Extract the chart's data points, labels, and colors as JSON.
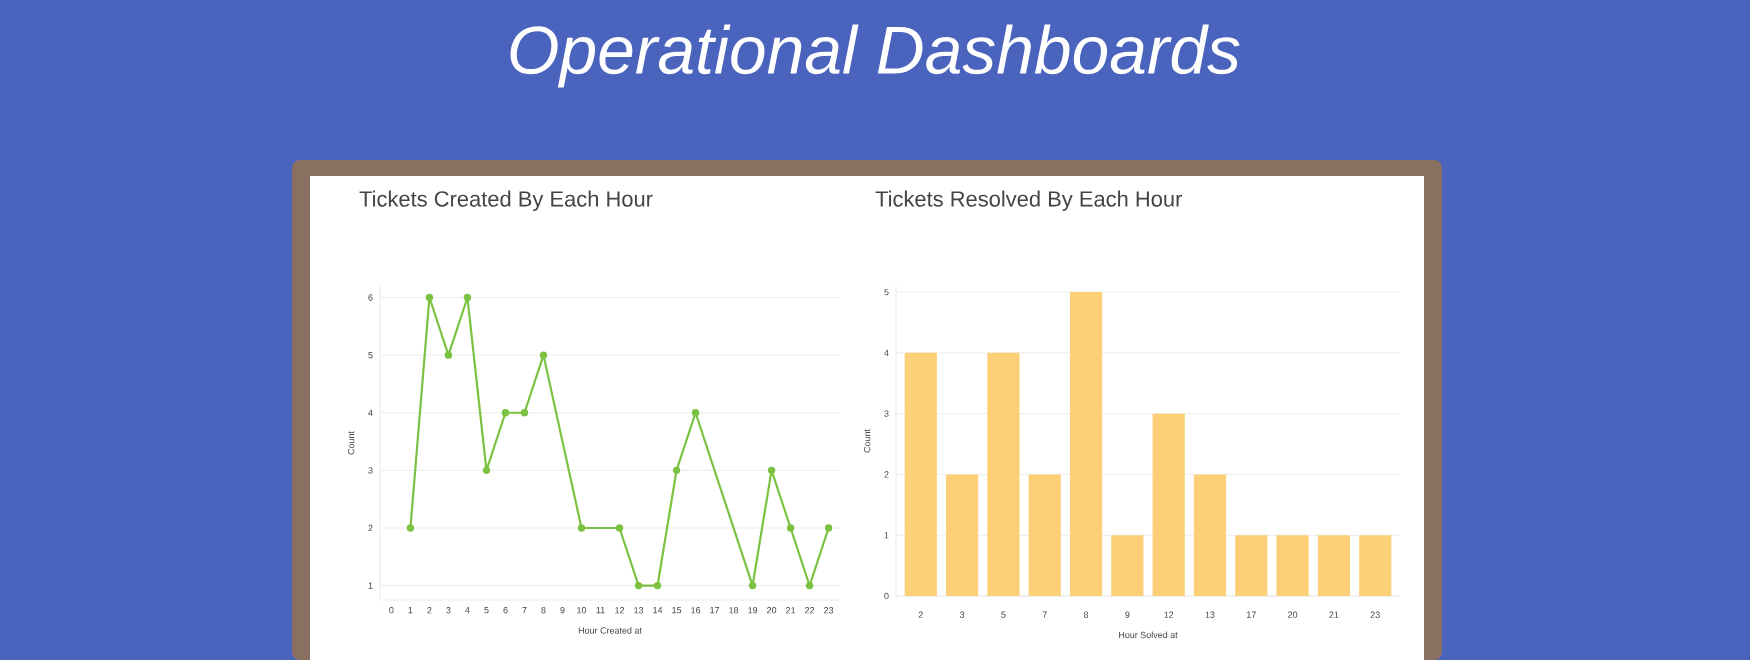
{
  "chart_data": [
    {
      "type": "line",
      "title": "Tickets Created By Each Hour",
      "xlabel": "Hour Created at",
      "ylabel": "Count",
      "annotations": [
        "Operational Dashboards"
      ],
      "x": [
        1,
        2,
        3,
        4,
        5,
        6,
        7,
        8,
        10,
        12,
        13,
        14,
        15,
        16,
        19,
        20,
        21,
        22,
        23
      ],
      "values": [
        2,
        6,
        5,
        6,
        3,
        4,
        4,
        5,
        2,
        2,
        1,
        1,
        3,
        4,
        1,
        3,
        2,
        1,
        2
      ],
      "color": "#7cc242",
      "marker": "circle",
      "grid": "y",
      "xlim": [
        -0.6,
        23.6
      ],
      "xticks": [
        0,
        1,
        2,
        3,
        4,
        5,
        6,
        7,
        8,
        9,
        10,
        11,
        12,
        13,
        14,
        15,
        16,
        17,
        18,
        19,
        20,
        21,
        22,
        23
      ],
      "ylim": [
        0.75,
        6.2
      ],
      "yticks": [
        1,
        2,
        3,
        4,
        5,
        6
      ]
    },
    {
      "type": "bar",
      "title": "Tickets Resolved By Each Hour",
      "xlabel": "Hour Solved at",
      "ylabel": "Count",
      "categories": [
        "2",
        "3",
        "5",
        "7",
        "8",
        "9",
        "12",
        "13",
        "17",
        "20",
        "21",
        "23"
      ],
      "values": [
        4,
        2,
        4,
        2,
        5,
        1,
        3,
        2,
        1,
        1,
        1,
        1
      ],
      "color": "#fdd078",
      "grid": "y",
      "ylim": [
        0,
        5.1
      ],
      "yticks": [
        0,
        1,
        2,
        3,
        4,
        5
      ]
    }
  ]
}
